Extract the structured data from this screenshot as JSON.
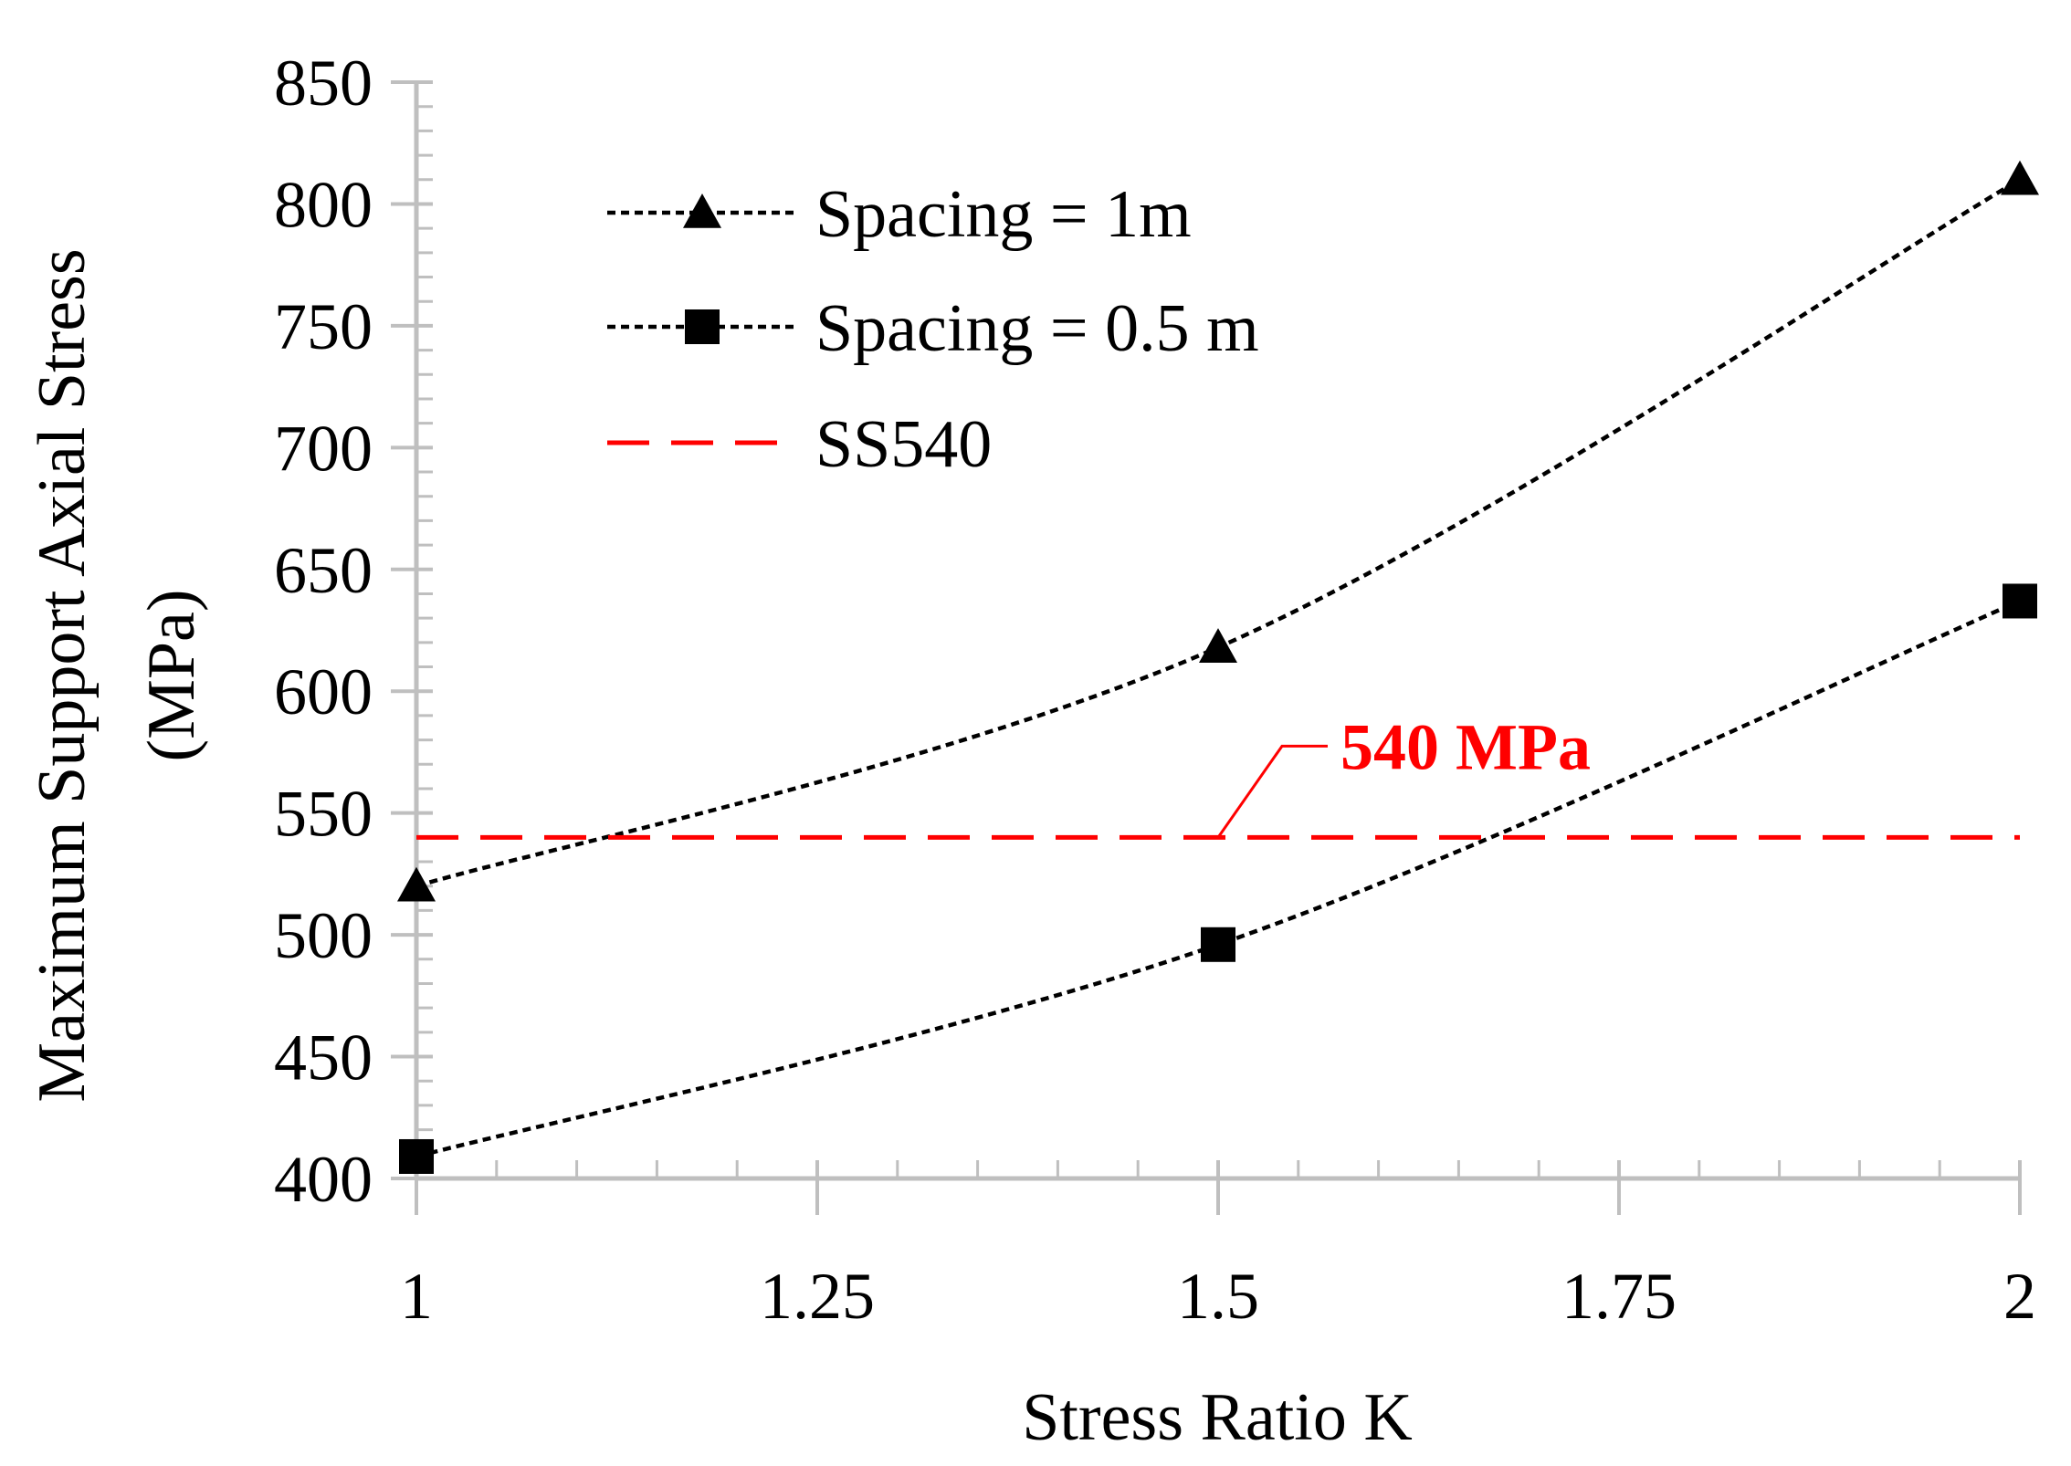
{
  "chart_data": {
    "type": "line",
    "title": "",
    "xlabel": "Stress Ratio K",
    "ylabel_line1": "Maximum Support Axial Stress",
    "ylabel_line2": "(MPa)",
    "xlim": [
      1,
      2
    ],
    "ylim": [
      400,
      850
    ],
    "x_ticks": [
      1,
      1.25,
      1.5,
      1.75,
      2
    ],
    "x_tick_labels": [
      "1",
      "1.25",
      "1.5",
      "1.75",
      "2"
    ],
    "y_ticks": [
      400,
      450,
      500,
      550,
      600,
      650,
      700,
      750,
      800,
      850
    ],
    "y_tick_labels": [
      "400",
      "450",
      "500",
      "550",
      "600",
      "650",
      "700",
      "750",
      "800",
      "850"
    ],
    "x_minor_step": 0.05,
    "y_minor_step": 10,
    "grid": false,
    "legend_position": "top-left",
    "series": [
      {
        "name": "Spacing = 1m",
        "marker": "triangle",
        "style": "dotted",
        "color": "#000000",
        "x": [
          1,
          1.5,
          2
        ],
        "values": [
          520,
          618,
          810
        ]
      },
      {
        "name": "Spacing = 0.5 m",
        "marker": "square",
        "style": "dotted",
        "color": "#000000",
        "x": [
          1,
          1.5,
          2
        ],
        "values": [
          409,
          496,
          637
        ]
      },
      {
        "name": "SS540",
        "marker": "none",
        "style": "dashed",
        "color": "#ff0000",
        "x": [
          1,
          2
        ],
        "values": [
          540,
          540
        ]
      }
    ],
    "annotations": [
      {
        "text": "540 MPa",
        "x": 1.5,
        "y": 540,
        "color": "#ff0000"
      }
    ]
  }
}
